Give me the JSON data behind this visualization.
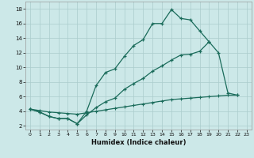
{
  "background_color": "#cce8e8",
  "grid_color": "#aacccc",
  "line_color": "#1a6b5a",
  "xlabel": "Humidex (Indice chaleur)",
  "xlim": [
    -0.5,
    23.5
  ],
  "ylim": [
    1.5,
    19.0
  ],
  "xtick_labels": [
    "0",
    "1",
    "2",
    "3",
    "4",
    "5",
    "6",
    "7",
    "8",
    "9",
    "10",
    "11",
    "12",
    "13",
    "14",
    "15",
    "16",
    "17",
    "18",
    "19",
    "20",
    "21",
    "22",
    "23"
  ],
  "xticks": [
    0,
    1,
    2,
    3,
    4,
    5,
    6,
    7,
    8,
    9,
    10,
    11,
    12,
    13,
    14,
    15,
    16,
    17,
    18,
    19,
    20,
    21,
    22,
    23
  ],
  "yticks": [
    2,
    4,
    6,
    8,
    10,
    12,
    14,
    16,
    18
  ],
  "line1_x": [
    0,
    1,
    2,
    3,
    4,
    5,
    6,
    7,
    8,
    9,
    10,
    11,
    12,
    13,
    14,
    15,
    16,
    17,
    18,
    19
  ],
  "line1_y": [
    4.3,
    3.9,
    3.3,
    3.0,
    3.0,
    2.3,
    4.0,
    7.5,
    9.3,
    9.8,
    11.5,
    13.0,
    13.8,
    16.0,
    16.0,
    17.9,
    16.7,
    16.5,
    15.0,
    13.5
  ],
  "line2_x": [
    0,
    1,
    2,
    3,
    4,
    5,
    6,
    7,
    8,
    9,
    10,
    11,
    12,
    13,
    14,
    15,
    16,
    17,
    18,
    19,
    20,
    21,
    22
  ],
  "line2_y": [
    4.3,
    3.9,
    3.3,
    3.0,
    3.0,
    2.3,
    3.5,
    4.5,
    5.3,
    5.8,
    7.0,
    7.8,
    8.5,
    9.5,
    10.2,
    11.0,
    11.7,
    11.8,
    12.2,
    13.5,
    12.0,
    6.5,
    6.2
  ],
  "line3_x": [
    0,
    1,
    2,
    3,
    4,
    5,
    6,
    7,
    8,
    9,
    10,
    11,
    12,
    13,
    14,
    15,
    16,
    17,
    18,
    19,
    20,
    21,
    22
  ],
  "line3_y": [
    4.3,
    4.1,
    3.9,
    3.8,
    3.7,
    3.6,
    3.8,
    4.0,
    4.2,
    4.4,
    4.6,
    4.8,
    5.0,
    5.2,
    5.4,
    5.6,
    5.7,
    5.8,
    5.9,
    6.0,
    6.1,
    6.2,
    6.2
  ]
}
